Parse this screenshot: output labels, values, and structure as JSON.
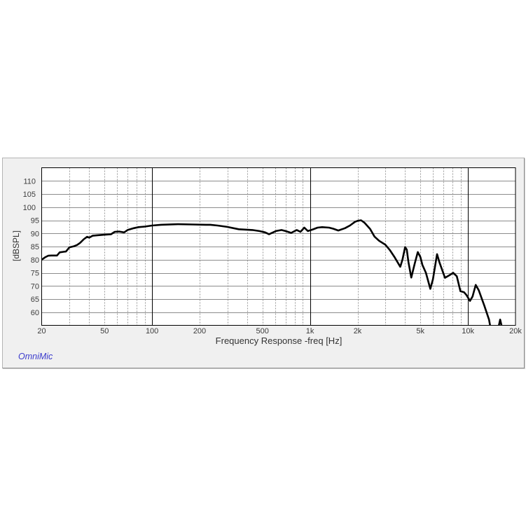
{
  "window": {
    "panel_background": "#f0f0f0",
    "watermark": "OmniMic",
    "watermark_color": "#3a3acc"
  },
  "chart_data": {
    "type": "line",
    "title": "",
    "xlabel": "Frequency Response -freq [Hz]",
    "ylabel": "[dBSPL]",
    "xscale": "log",
    "xlim": [
      20,
      20000
    ],
    "ylim": [
      55,
      115
    ],
    "grid": true,
    "legend": null,
    "xticks": [
      {
        "value": 20,
        "label": "20"
      },
      {
        "value": 50,
        "label": "50"
      },
      {
        "value": 100,
        "label": "100"
      },
      {
        "value": 200,
        "label": "200"
      },
      {
        "value": 500,
        "label": "500"
      },
      {
        "value": 1000,
        "label": "1k"
      },
      {
        "value": 2000,
        "label": "2k"
      },
      {
        "value": 5000,
        "label": "5k"
      },
      {
        "value": 10000,
        "label": "10k"
      },
      {
        "value": 20000,
        "label": "20k"
      }
    ],
    "yticks": [
      60,
      65,
      70,
      75,
      80,
      85,
      90,
      95,
      100,
      105,
      110
    ],
    "major_x_gridlines": [
      100,
      1000,
      10000
    ],
    "minor_x_gridlines": [
      30,
      40,
      50,
      60,
      70,
      80,
      90,
      200,
      300,
      400,
      500,
      600,
      700,
      800,
      900,
      2000,
      3000,
      4000,
      5000,
      6000,
      7000,
      8000,
      9000
    ],
    "colors": {
      "curve": "#000000",
      "major_grid": "#000000",
      "minor_grid": "#9a9a9a",
      "horizontal_grid": "#8c8c8c",
      "plot_background": "#ffffff"
    },
    "series": [
      {
        "name": "Frequency Response",
        "x": [
          20,
          21,
          22,
          23,
          25,
          26,
          27.5,
          28.5,
          30,
          32,
          33.5,
          35,
          37,
          38.8,
          40,
          42,
          45,
          50,
          55,
          58,
          62,
          66.5,
          70,
          76.5,
          82,
          90,
          100,
          114,
          146,
          180,
          219,
          234,
          260,
          298,
          354,
          432,
          478,
          520,
          550,
          608,
          660,
          700,
          760,
          824,
          870,
          920,
          970,
          1040,
          1116,
          1194,
          1320,
          1400,
          1510,
          1665,
          1790,
          1924,
          2000,
          2105,
          2210,
          2400,
          2560,
          2740,
          3000,
          3200,
          3420,
          3730,
          3850,
          4000,
          4100,
          4200,
          4375,
          4600,
          4815,
          5000,
          5150,
          5420,
          5780,
          6000,
          6370,
          6600,
          7150,
          7600,
          8060,
          8500,
          8960,
          9450,
          9800,
          10300,
          10700,
          11200,
          11700,
          12700,
          13600,
          13800,
          null,
          15700,
          16000,
          16300
        ],
        "y": [
          80.0,
          80.9,
          81.5,
          81.6,
          81.6,
          82.8,
          83.0,
          83.1,
          84.7,
          85.1,
          85.6,
          86.4,
          87.8,
          88.7,
          88.4,
          89.1,
          89.3,
          89.5,
          89.7,
          90.6,
          90.7,
          90.4,
          91.3,
          92.0,
          92.4,
          92.6,
          93.0,
          93.3,
          93.5,
          93.4,
          93.3,
          93.3,
          93.0,
          92.5,
          91.6,
          91.3,
          90.9,
          90.4,
          89.7,
          90.9,
          91.3,
          90.9,
          90.2,
          91.3,
          90.6,
          92.2,
          90.9,
          91.5,
          92.2,
          92.4,
          92.2,
          91.8,
          91.1,
          92.0,
          93.0,
          94.4,
          94.8,
          95.0,
          94.1,
          91.7,
          88.8,
          87.2,
          85.7,
          83.7,
          81.1,
          77.3,
          80.0,
          84.8,
          83.8,
          79.0,
          73.2,
          78.5,
          82.9,
          81.0,
          78.0,
          75.0,
          68.9,
          72.5,
          82.1,
          79.0,
          73.1,
          74.0,
          75.0,
          73.7,
          68.0,
          67.6,
          66.5,
          64.3,
          66.0,
          70.4,
          68.4,
          62.5,
          57.2,
          55.0,
          null,
          55.0,
          57.2,
          55.0
        ]
      }
    ],
    "annotations": [
      "OmniMic"
    ]
  }
}
